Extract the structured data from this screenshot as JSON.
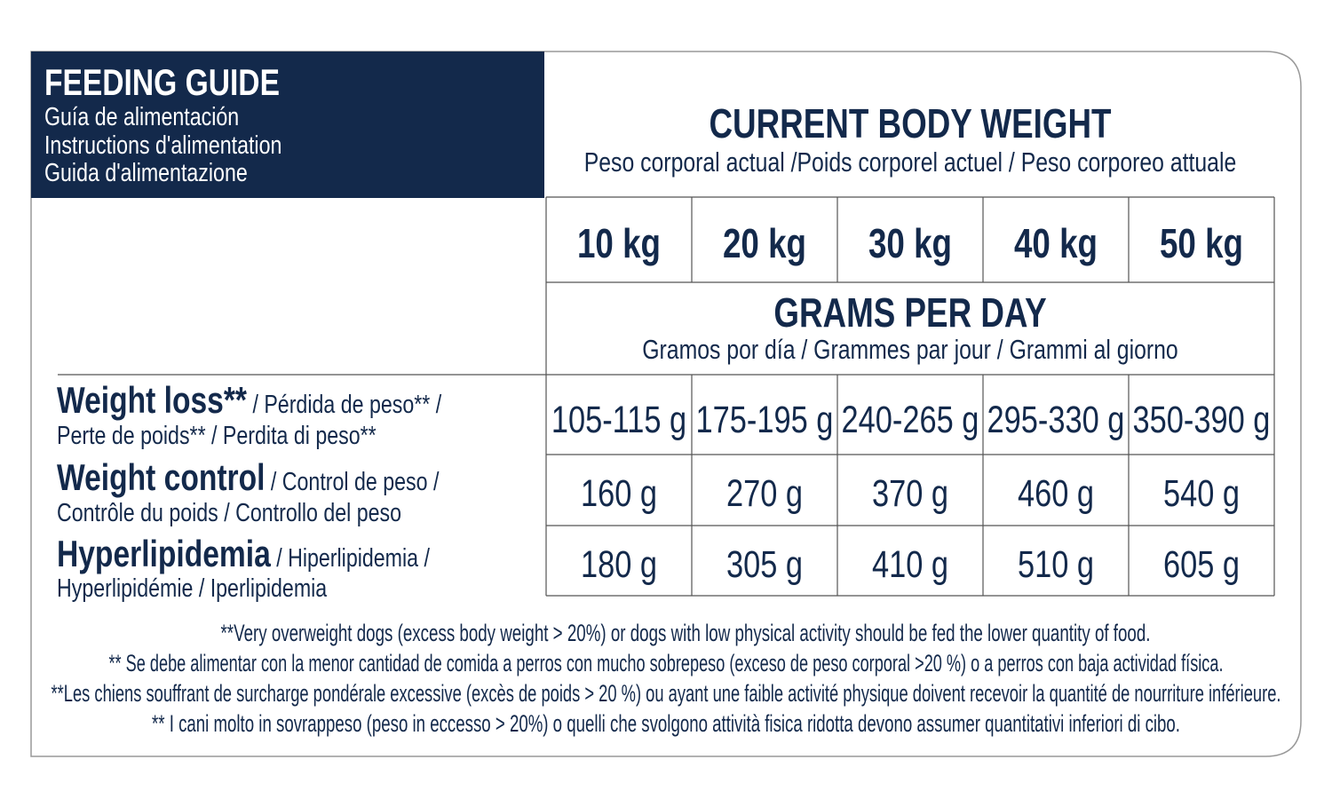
{
  "header": {
    "title": "FEEDING GUIDE",
    "subtitles": [
      "Guía de alimentación",
      "Instructions d'alimentation",
      "Guida d'alimentazione"
    ]
  },
  "table": {
    "weight_heading": "CURRENT BODY WEIGHT",
    "weight_subheading": "Peso corporal actual /Poids corporel actuel / Peso corporeo attuale",
    "weights": [
      "10 kg",
      "20 kg",
      "30 kg",
      "40 kg",
      "50 kg"
    ],
    "amount_heading": "GRAMS PER DAY",
    "amount_subheading": "Gramos por día / Grammes par jour / Grammi al giorno",
    "rows": [
      {
        "label": "Weight loss**",
        "translation_line1": " / Pérdida de peso** /",
        "translation_line2": "Perte de poids** / Perdita di peso**",
        "values": [
          "105-115 g",
          "175-195 g",
          "240-265 g",
          "295-330 g",
          "350-390 g"
        ]
      },
      {
        "label": "Weight control",
        "translation_line1": " / Control de peso /",
        "translation_line2": "Contrôle du poids / Controllo del peso",
        "values": [
          "160 g",
          "270 g",
          "370 g",
          "460 g",
          "540 g"
        ]
      },
      {
        "label": "Hyperlipidemia",
        "translation_line1": " / Hiperlipidemia /",
        "translation_line2": "Hyperlipidémie / Iperlipidemia",
        "values": [
          "180 g",
          "305 g",
          "410 g",
          "510 g",
          "605 g"
        ]
      }
    ]
  },
  "footnotes": [
    "**Very overweight dogs (excess body weight > 20%) or dogs with low physical activity should be fed the lower quantity of food.",
    "** Se debe alimentar con la menor cantidad de comida a perros con mucho sobrepeso (exceso de peso corporal >20 %) o a perros con baja actividad física.",
    "**Les chiens souffrant de surcharge pondérale excessive (excès de poids > 20 %) ou ayant une faible activité physique doivent recevoir la quantité de nourriture inférieure.",
    "** I cani molto in sovrappeso (peso in eccesso > 20%) o quelli che svolgono attività fisica ridotta devono assumer quantitativi inferiori di cibo."
  ]
}
